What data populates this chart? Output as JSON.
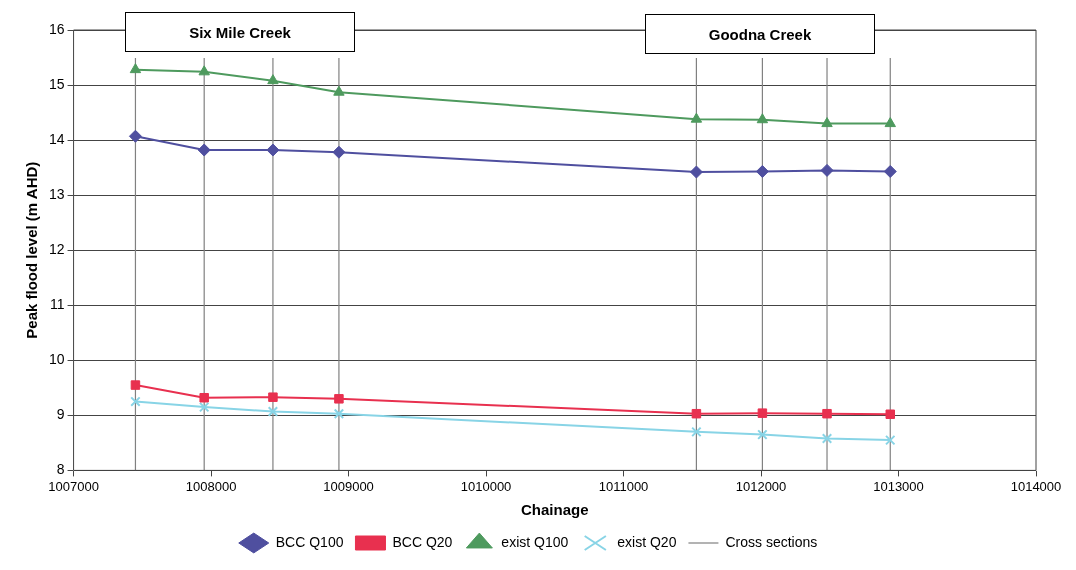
{
  "chart_data": {
    "type": "line",
    "xlabel": "Chainage",
    "ylabel": "Peak flood level (m AHD)",
    "xlim": [
      1007000,
      1014000
    ],
    "xticks": [
      1007000,
      1008000,
      1009000,
      1010000,
      1011000,
      1012000,
      1013000,
      1014000
    ],
    "ylim": [
      8,
      16
    ],
    "yticks": [
      8,
      9,
      10,
      11,
      12,
      13,
      14,
      15,
      16
    ],
    "grid": "y",
    "legend": "bottom",
    "line_style": "solid",
    "annotations": [
      "Six Mile Creek",
      "Goodna Creek"
    ],
    "series": [
      {
        "name": "BCC Q100",
        "color": "#4f4f9f",
        "marker": "diamond",
        "x": [
          1007450,
          1007950,
          1008450,
          1008930,
          1011530,
          1012010,
          1012480,
          1012940
        ],
        "values": [
          14.07,
          13.82,
          13.82,
          13.78,
          13.42,
          13.43,
          13.45,
          13.43
        ]
      },
      {
        "name": "BCC Q20",
        "color": "#e8304f",
        "marker": "square",
        "x": [
          1007450,
          1007950,
          1008450,
          1008930,
          1011530,
          1012010,
          1012480,
          1012940
        ],
        "values": [
          9.55,
          9.32,
          9.33,
          9.3,
          9.03,
          9.04,
          9.03,
          9.02
        ]
      },
      {
        "name": "exist Q100",
        "color": "#4e9a5e",
        "marker": "triangle",
        "x": [
          1007450,
          1007950,
          1008450,
          1008930,
          1011530,
          1012010,
          1012480,
          1012940
        ],
        "values": [
          15.28,
          15.24,
          15.08,
          14.87,
          14.38,
          14.37,
          14.3,
          14.3
        ]
      },
      {
        "name": "exist Q20",
        "color": "#88d4e6",
        "marker": "cross",
        "x": [
          1007450,
          1007950,
          1008450,
          1008930,
          1011530,
          1012010,
          1012480,
          1012940
        ],
        "values": [
          9.25,
          9.15,
          9.07,
          9.03,
          8.7,
          8.65,
          8.58,
          8.55
        ]
      }
    ],
    "ref_lines": [
      {
        "axis": "x",
        "value": 1007450,
        "label": "Cross sections",
        "color": "#808080"
      },
      {
        "axis": "x",
        "value": 1007950,
        "color": "#808080"
      },
      {
        "axis": "x",
        "value": 1008450,
        "color": "#808080"
      },
      {
        "axis": "x",
        "value": 1008930,
        "color": "#808080"
      },
      {
        "axis": "x",
        "value": 1011530,
        "color": "#808080"
      },
      {
        "axis": "x",
        "value": 1012010,
        "color": "#808080"
      },
      {
        "axis": "x",
        "value": 1012480,
        "color": "#808080"
      },
      {
        "axis": "x",
        "value": 1012940,
        "color": "#808080"
      }
    ]
  }
}
